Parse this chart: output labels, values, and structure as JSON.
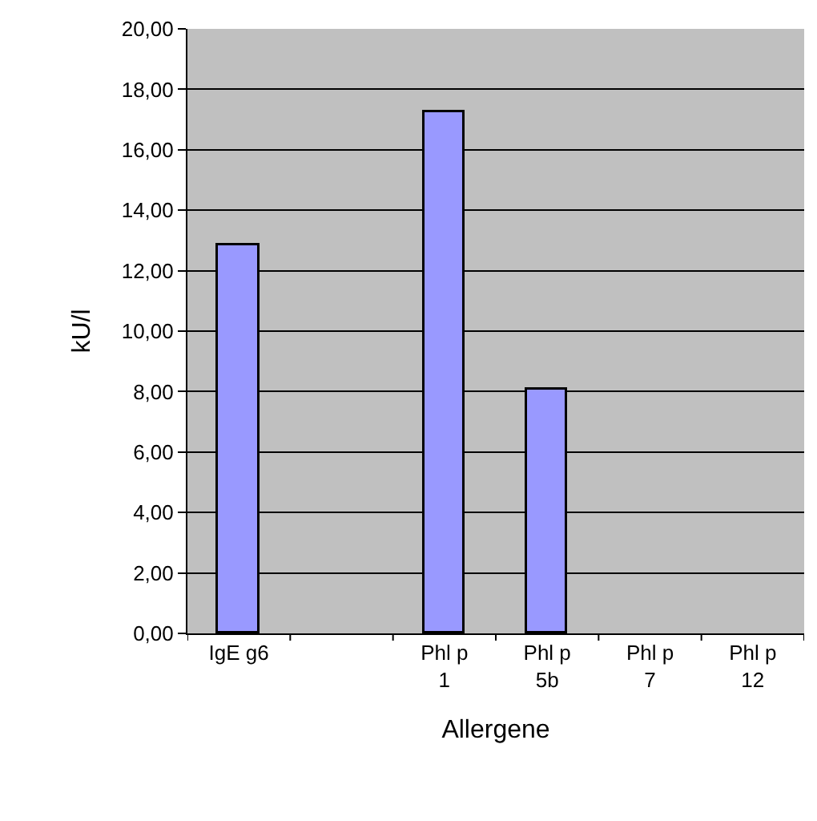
{
  "chart_data": {
    "type": "bar",
    "xlabel": "Allergene",
    "ylabel": "kU/l",
    "categories": [
      "IgE g6",
      null,
      "Phl p 1",
      "Phl p 5b",
      "Phl p 7",
      "Phl p 12"
    ],
    "values": [
      12.85,
      null,
      17.23,
      8.09,
      null,
      null
    ],
    "color": "#9999ff",
    "ylim": [
      0,
      20
    ],
    "yticks": [
      {
        "value": 0,
        "label": "0,00"
      },
      {
        "value": 2,
        "label": "2,00"
      },
      {
        "value": 4,
        "label": "4,00"
      },
      {
        "value": 6,
        "label": "6,00"
      },
      {
        "value": 8,
        "label": "8,00"
      },
      {
        "value": 10,
        "label": "10,00"
      },
      {
        "value": 12,
        "label": "12,00"
      },
      {
        "value": 14,
        "label": "14,00"
      },
      {
        "value": 16,
        "label": "16,00"
      },
      {
        "value": 18,
        "label": "18,00"
      },
      {
        "value": 20,
        "label": "20,00"
      }
    ],
    "grid": "y",
    "legend": false
  }
}
